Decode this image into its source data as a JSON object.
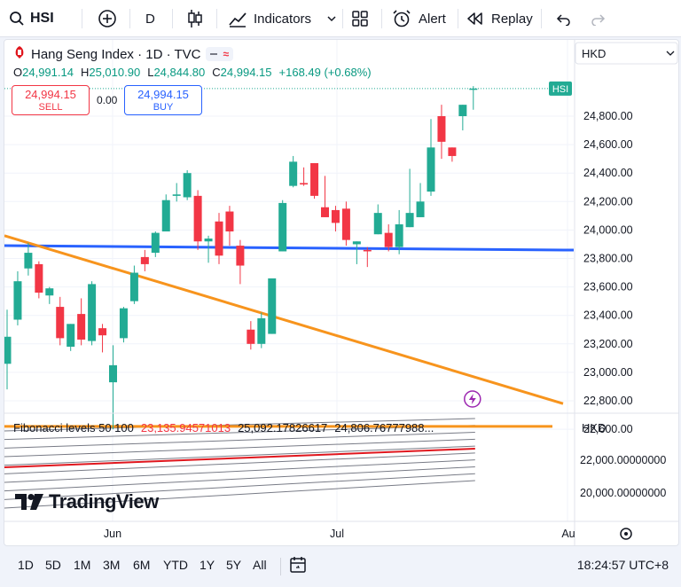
{
  "toolbar": {
    "symbol": "HSI",
    "interval": "D",
    "indicators_label": "Indicators",
    "alert_label": "Alert",
    "replay_label": "Replay"
  },
  "legend": {
    "title": "Hang Seng Index · 1D · TVC",
    "o_key": "O",
    "o_val": "24,991.14",
    "h_key": "H",
    "h_val": "25,010.90",
    "l_key": "L",
    "l_val": "24,844.80",
    "c_key": "C",
    "c_val": "24,994.15",
    "change": "+168.49 (+0.68%)",
    "sell_price": "24,994.15",
    "sell_label": "SELL",
    "spread": "0.00",
    "buy_price": "24,994.15",
    "buy_label": "BUY"
  },
  "price_axis": {
    "currency_label": "HKD",
    "symbol_tag": "HSI",
    "ticks": [
      "24,800.00",
      "24,600.00",
      "24,400.00",
      "24,200.00",
      "24,000.00",
      "23,800.00",
      "23,600.00",
      "23,400.00",
      "23,200.00",
      "23,000.00",
      "22,800.00",
      "22,600.00"
    ]
  },
  "fib": {
    "label": "Fibonacci levels 50 100",
    "v1": "23,135.94571013",
    "v2": "25,092.17826617",
    "v3": "24,806.76777988",
    "ellipsis": "...",
    "axis_label": "HKD",
    "ticks": [
      "22,000.00000000",
      "20,000.00000000"
    ]
  },
  "time_axis": {
    "labels": [
      "Jun",
      "Jul",
      "Au"
    ]
  },
  "logo": {
    "text": "TradingView"
  },
  "ranges": [
    "1D",
    "5D",
    "1M",
    "3M",
    "6M",
    "YTD",
    "1Y",
    "5Y",
    "All"
  ],
  "clock": "18:24:57 UTC+8",
  "colors": {
    "up": "#22ab94",
    "down": "#f23645",
    "hline": "#2962ff",
    "trend": "#f7941d",
    "fib_mid": "#e0161d"
  },
  "chart_data": {
    "type": "candlestick",
    "symbol": "HSI",
    "currency": "HKD",
    "ylim": [
      22550,
      25130
    ],
    "candles": [
      {
        "o": 23060,
        "h": 23440,
        "l": 22880,
        "c": 23250
      },
      {
        "o": 23370,
        "h": 23710,
        "l": 23330,
        "c": 23640
      },
      {
        "o": 23730,
        "h": 23910,
        "l": 23680,
        "c": 23840
      },
      {
        "o": 23760,
        "h": 23780,
        "l": 23520,
        "c": 23560
      },
      {
        "o": 23540,
        "h": 23600,
        "l": 23480,
        "c": 23590
      },
      {
        "o": 23460,
        "h": 23530,
        "l": 23190,
        "c": 23240
      },
      {
        "o": 23180,
        "h": 23340,
        "l": 23150,
        "c": 23340
      },
      {
        "o": 23410,
        "h": 23520,
        "l": 23190,
        "c": 23230
      },
      {
        "o": 23220,
        "h": 23640,
        "l": 23190,
        "c": 23620
      },
      {
        "o": 23310,
        "h": 23340,
        "l": 23140,
        "c": 23260
      },
      {
        "o": 22930,
        "h": 23190,
        "l": 22600,
        "c": 23050
      },
      {
        "o": 23240,
        "h": 23460,
        "l": 23210,
        "c": 23450
      },
      {
        "o": 23500,
        "h": 23750,
        "l": 23480,
        "c": 23700
      },
      {
        "o": 23810,
        "h": 23860,
        "l": 23710,
        "c": 23760
      },
      {
        "o": 23840,
        "h": 23990,
        "l": 23810,
        "c": 23980
      },
      {
        "o": 23990,
        "h": 24250,
        "l": 23990,
        "c": 24210
      },
      {
        "o": 24240,
        "h": 24330,
        "l": 24200,
        "c": 24250
      },
      {
        "o": 24230,
        "h": 24420,
        "l": 24210,
        "c": 24400
      },
      {
        "o": 24240,
        "h": 24280,
        "l": 23860,
        "c": 23920
      },
      {
        "o": 23920,
        "h": 23960,
        "l": 23770,
        "c": 23940
      },
      {
        "o": 24060,
        "h": 24120,
        "l": 23760,
        "c": 23820
      },
      {
        "o": 24130,
        "h": 24170,
        "l": 23890,
        "c": 23990
      },
      {
        "o": 23890,
        "h": 23930,
        "l": 23620,
        "c": 23750
      },
      {
        "o": 23300,
        "h": 23360,
        "l": 23160,
        "c": 23200
      },
      {
        "o": 23200,
        "h": 23420,
        "l": 23170,
        "c": 23380
      },
      {
        "o": 23270,
        "h": 23650,
        "l": 23270,
        "c": 23660
      },
      {
        "o": 23850,
        "h": 24210,
        "l": 23850,
        "c": 24190
      },
      {
        "o": 24310,
        "h": 24520,
        "l": 24300,
        "c": 24480
      },
      {
        "o": 24330,
        "h": 24440,
        "l": 24310,
        "c": 24320
      },
      {
        "o": 24470,
        "h": 24470,
        "l": 24220,
        "c": 24240
      },
      {
        "o": 24160,
        "h": 24380,
        "l": 24100,
        "c": 24090
      },
      {
        "o": 24140,
        "h": 24170,
        "l": 23990,
        "c": 24050
      },
      {
        "o": 24150,
        "h": 24200,
        "l": 23890,
        "c": 23930
      },
      {
        "o": 23900,
        "h": 23920,
        "l": 23760,
        "c": 23920
      },
      {
        "o": 23860,
        "h": 23880,
        "l": 23740,
        "c": 23850
      },
      {
        "o": 23970,
        "h": 24180,
        "l": 23970,
        "c": 24120
      },
      {
        "o": 23980,
        "h": 24040,
        "l": 23850,
        "c": 23880
      },
      {
        "o": 23880,
        "h": 24140,
        "l": 23830,
        "c": 24040
      },
      {
        "o": 24020,
        "h": 24430,
        "l": 24020,
        "c": 24120
      },
      {
        "o": 24090,
        "h": 24330,
        "l": 24090,
        "c": 24200
      },
      {
        "o": 24270,
        "h": 24780,
        "l": 24240,
        "c": 24580
      },
      {
        "o": 24800,
        "h": 24880,
        "l": 24500,
        "c": 24620
      },
      {
        "o": 24580,
        "h": 24570,
        "l": 24480,
        "c": 24520
      },
      {
        "o": 24800,
        "h": 24880,
        "l": 24700,
        "c": 24880
      },
      {
        "o": 24991.14,
        "h": 25010.9,
        "l": 24844.8,
        "c": 24994.15
      }
    ],
    "horizontal_lines": [
      {
        "name": "blue level",
        "value": 23890
      },
      {
        "name": "orange level",
        "value": 22620
      }
    ],
    "trend_line": {
      "start": 23960,
      "end": 22780
    },
    "last_price": 24994.15
  }
}
